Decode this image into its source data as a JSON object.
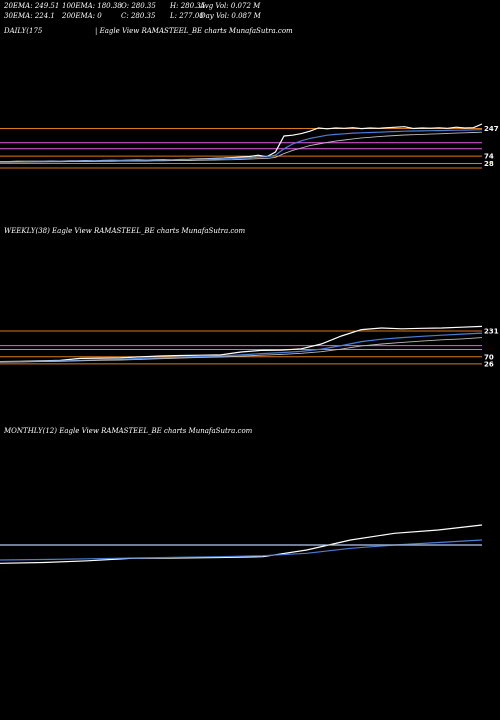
{
  "header": {
    "row1": [
      {
        "label": "20EMA: 249.51"
      },
      {
        "label": "100EMA: 180.38"
      },
      {
        "label": "O: 280.35"
      },
      {
        "label": "H: 280.35"
      },
      {
        "label": "Avg Vol: 0.072  M"
      }
    ],
    "row2": [
      {
        "label": "30EMA: 224.1"
      },
      {
        "label": "200EMA: 0"
      },
      {
        "label": "C: 280.35"
      },
      {
        "label": "L: 277.00"
      },
      {
        "label": "Day Vol: 0.087  M"
      }
    ]
  },
  "colors": {
    "price": "#ffffff",
    "ema_blue": "#4a7fd8",
    "ema_gray": "#bbbbbb",
    "orange": "#d9781c",
    "magenta": "#e060e0"
  },
  "chart_data": [
    {
      "type": "line",
      "label": "DAILY(175",
      "watermark": "| Eagle   View  RAMASTEEL_BE charts MunafaSutra.com",
      "level_labels": [
        "247",
        "74",
        "28"
      ],
      "series": [
        {
          "values": [
            40,
            40,
            41,
            42,
            41,
            42,
            43,
            42,
            44,
            45,
            46,
            45,
            47,
            48,
            47,
            49,
            50,
            49,
            51,
            52,
            51,
            53,
            54,
            56,
            58,
            60,
            62,
            65,
            68,
            72,
            80,
            70,
            100,
            200,
            205,
            215,
            230,
            250,
            245,
            250,
            248,
            252,
            246,
            250,
            248,
            252,
            255,
            258,
            247,
            250,
            249,
            251,
            248,
            255,
            250,
            252,
            275
          ]
        },
        {
          "values": [
            38,
            38,
            39,
            40,
            40,
            41,
            41,
            42,
            42,
            43,
            44,
            44,
            45,
            45,
            46,
            47,
            47,
            48,
            49,
            49,
            50,
            51,
            52,
            53,
            55,
            56,
            58,
            60,
            62,
            65,
            68,
            70,
            80,
            120,
            150,
            170,
            185,
            195,
            205,
            210,
            214,
            218,
            220,
            222,
            224,
            226,
            228,
            230,
            231,
            232,
            233,
            234,
            235,
            236,
            237,
            238,
            240
          ]
        },
        {
          "values": [
            36,
            36,
            37,
            37,
            38,
            38,
            39,
            39,
            40,
            40,
            41,
            41,
            42,
            42,
            43,
            43,
            44,
            44,
            45,
            45,
            46,
            46,
            47,
            48,
            49,
            50,
            51,
            52,
            54,
            56,
            58,
            60,
            66,
            90,
            110,
            125,
            140,
            150,
            160,
            168,
            175,
            182,
            188,
            192,
            196,
            200,
            203,
            206,
            208,
            210,
            212,
            214,
            216,
            218,
            220,
            222,
            224
          ]
        }
      ],
      "levels": [
        247,
        158,
        120,
        74,
        28,
        0
      ]
    },
    {
      "type": "line",
      "label": "WEEKLY(38) Eagle   View  RAMASTEEL_BE charts MunafaSutra.com",
      "level_labels": [
        "231",
        "70",
        "26"
      ],
      "series": [
        {
          "values": [
            40,
            42,
            45,
            48,
            60,
            62,
            64,
            70,
            75,
            78,
            80,
            82,
            100,
            110,
            112,
            120,
            150,
            200,
            240,
            250,
            245,
            248,
            250,
            255,
            260
          ]
        },
        {
          "values": [
            38,
            40,
            42,
            44,
            48,
            52,
            55,
            60,
            64,
            68,
            72,
            75,
            82,
            90,
            96,
            104,
            118,
            140,
            165,
            180,
            190,
            198,
            205,
            212,
            218
          ]
        },
        {
          "values": [
            36,
            38,
            40,
            42,
            45,
            48,
            50,
            54,
            58,
            62,
            66,
            69,
            74,
            80,
            85,
            92,
            102,
            118,
            138,
            150,
            160,
            168,
            176,
            182,
            190
          ]
        }
      ],
      "levels": [
        231,
        140,
        116,
        70,
        26
      ]
    },
    {
      "type": "line",
      "label": "MONTHLY(12) Eagle   View  RAMASTEEL_BE charts MunafaSutra.com",
      "series": [
        {
          "values": [
            40,
            45,
            55,
            70,
            72,
            75,
            80,
            120,
            180,
            220,
            240,
            270
          ]
        },
        {
          "values": [
            60,
            63,
            67,
            72,
            76,
            80,
            86,
            100,
            130,
            150,
            165,
            180
          ]
        },
        {
          "values": [
            150,
            150,
            150,
            150,
            150,
            150,
            150,
            150,
            150,
            150,
            150,
            150
          ]
        }
      ],
      "levels": [
        150
      ]
    }
  ]
}
